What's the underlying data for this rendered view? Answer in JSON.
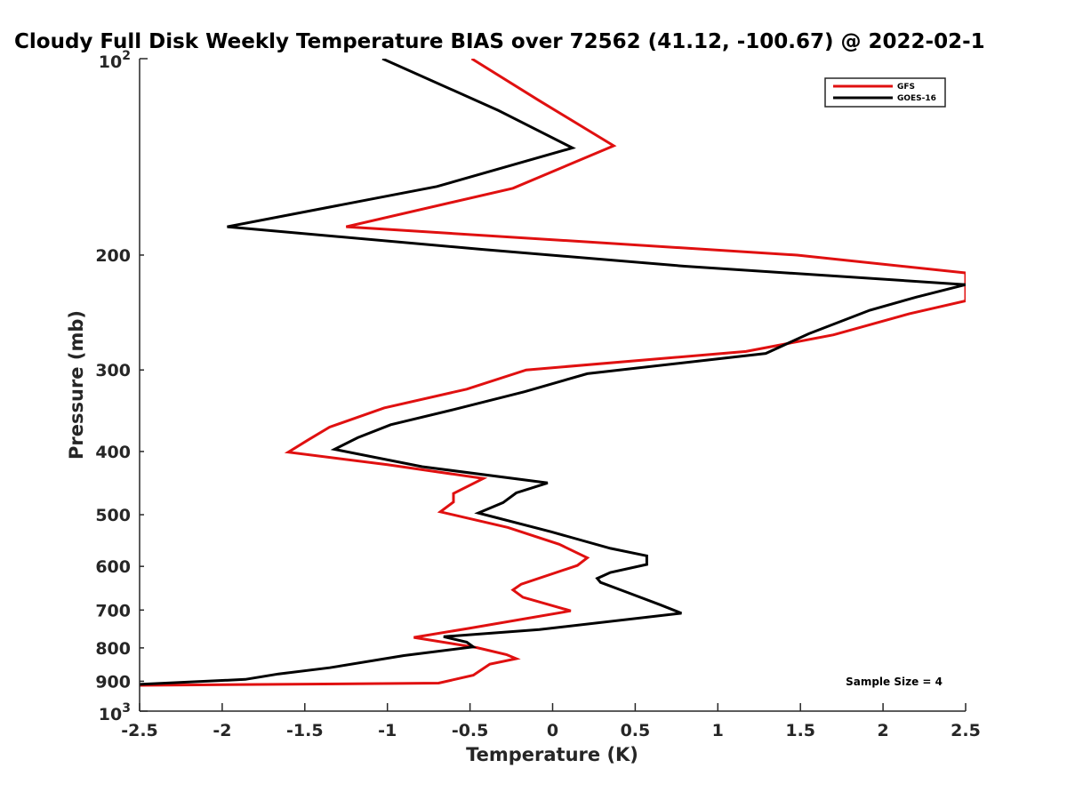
{
  "chart_data": {
    "type": "line",
    "title": "Cloudy Full Disk Weekly Temperature BIAS over 72562 (41.12, -100.67) @ 2022-02-1",
    "xlabel": "Temperature (K)",
    "ylabel": "Pressure (mb)",
    "xlim": [
      -2.5,
      2.5
    ],
    "ylim": [
      100,
      1000
    ],
    "y_scale": "log",
    "y_reversed": true,
    "grid": false,
    "legend_position": "top-right",
    "x_ticks": [
      "-2.5",
      "-2",
      "-1.5",
      "-1",
      "-0.5",
      "0",
      "0.5",
      "1",
      "1.5",
      "2",
      "2.5"
    ],
    "x_tick_values": [
      -2.5,
      -2,
      -1.5,
      -1,
      -0.5,
      0,
      0.5,
      1,
      1.5,
      2,
      2.5
    ],
    "y_ticks": [
      {
        "value": 100,
        "base": "10",
        "exp": "2"
      },
      {
        "value": 200,
        "text": "200"
      },
      {
        "value": 300,
        "text": "300"
      },
      {
        "value": 400,
        "text": "400"
      },
      {
        "value": 500,
        "text": "500"
      },
      {
        "value": 600,
        "text": "600"
      },
      {
        "value": 700,
        "text": "700"
      },
      {
        "value": 800,
        "text": "800"
      },
      {
        "value": 900,
        "text": "900"
      },
      {
        "value": 1000,
        "base": "10",
        "exp": "3"
      }
    ],
    "annotation": "Sample Size = 4",
    "series": [
      {
        "name": "GFS",
        "color": "#e01010",
        "points": [
          [
            -0.49,
            100
          ],
          [
            -0.08,
            116
          ],
          [
            0.37,
            136
          ],
          [
            -0.24,
            158
          ],
          [
            -1.25,
            181
          ],
          [
            1.48,
            200
          ],
          [
            2.5,
            213
          ],
          [
            2.5,
            235
          ],
          [
            2.16,
            246
          ],
          [
            1.7,
            265
          ],
          [
            1.17,
            281
          ],
          [
            -0.16,
            300
          ],
          [
            -0.52,
            321
          ],
          [
            -1.02,
            343
          ],
          [
            -1.35,
            367
          ],
          [
            -1.48,
            384
          ],
          [
            -1.6,
            401
          ],
          [
            -1.0,
            419
          ],
          [
            -0.42,
            440
          ],
          [
            -0.6,
            464
          ],
          [
            -0.6,
            478
          ],
          [
            -0.68,
            495
          ],
          [
            -0.27,
            523
          ],
          [
            0.04,
            555
          ],
          [
            0.21,
            582
          ],
          [
            0.15,
            598
          ],
          [
            -0.19,
            639
          ],
          [
            -0.24,
            652
          ],
          [
            -0.18,
            669
          ],
          [
            0.11,
            702
          ],
          [
            -0.51,
            747
          ],
          [
            -0.84,
            771
          ],
          [
            -0.46,
            799
          ],
          [
            -0.28,
            819
          ],
          [
            -0.22,
            831
          ],
          [
            -0.38,
            847
          ],
          [
            -0.48,
            881
          ],
          [
            -0.69,
            906
          ],
          [
            -2.5,
            913
          ]
        ]
      },
      {
        "name": "GOES-16",
        "color": "#000000",
        "points": [
          [
            -1.03,
            100
          ],
          [
            -0.33,
            120
          ],
          [
            0.12,
            137
          ],
          [
            -0.7,
            157
          ],
          [
            -1.97,
            181
          ],
          [
            -0.43,
            196
          ],
          [
            0.8,
            208
          ],
          [
            2.5,
            222
          ],
          [
            2.2,
            232
          ],
          [
            1.92,
            243
          ],
          [
            1.55,
            264
          ],
          [
            1.29,
            283
          ],
          [
            0.21,
            304
          ],
          [
            -0.17,
            324
          ],
          [
            -0.6,
            345
          ],
          [
            -0.98,
            364
          ],
          [
            -1.18,
            381
          ],
          [
            -1.32,
            397
          ],
          [
            -0.79,
            422
          ],
          [
            -0.03,
            447
          ],
          [
            -0.22,
            463
          ],
          [
            -0.3,
            479
          ],
          [
            -0.45,
            497
          ],
          [
            -0.01,
            531
          ],
          [
            0.35,
            563
          ],
          [
            0.57,
            578
          ],
          [
            0.57,
            596
          ],
          [
            0.35,
            613
          ],
          [
            0.27,
            626
          ],
          [
            0.29,
            635
          ],
          [
            0.44,
            656
          ],
          [
            0.65,
            687
          ],
          [
            0.78,
            708
          ],
          [
            -0.08,
            750
          ],
          [
            -0.66,
            769
          ],
          [
            -0.52,
            784
          ],
          [
            -0.48,
            797
          ],
          [
            -0.9,
            822
          ],
          [
            -1.35,
            858
          ],
          [
            -1.66,
            877
          ],
          [
            -1.86,
            894
          ],
          [
            -2.5,
            910
          ]
        ]
      }
    ]
  }
}
